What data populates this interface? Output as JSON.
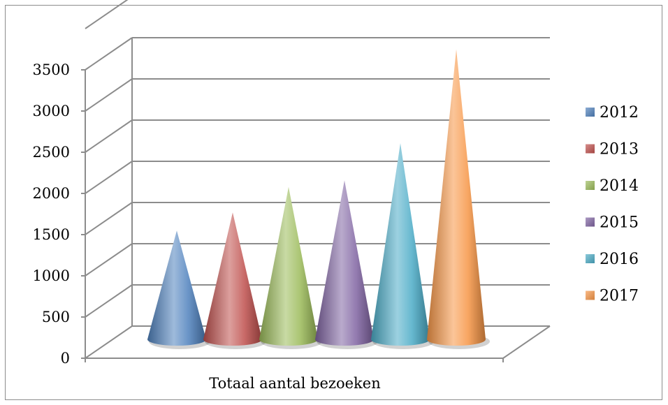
{
  "chart_data": {
    "type": "bar",
    "bar_shape": "cone",
    "categories": [
      "Totaal aantal bezoeken"
    ],
    "series": [
      {
        "name": "2012",
        "values": [
          1320
        ],
        "color": "#4f81bd"
      },
      {
        "name": "2013",
        "values": [
          1540
        ],
        "color": "#c0504d"
      },
      {
        "name": "2014",
        "values": [
          1850
        ],
        "color": "#9bbb59"
      },
      {
        "name": "2015",
        "values": [
          1930
        ],
        "color": "#8064a2"
      },
      {
        "name": "2016",
        "values": [
          2380
        ],
        "color": "#4bacc6"
      },
      {
        "name": "2017",
        "values": [
          3520
        ],
        "color": "#f79646"
      }
    ],
    "yticks": [
      "0",
      "500",
      "1000",
      "1500",
      "2000",
      "2500",
      "3000",
      "3500"
    ],
    "ylim": [
      0,
      3500
    ],
    "grid": true,
    "legend": "right",
    "title": "",
    "xlabel": "",
    "ylabel": ""
  }
}
